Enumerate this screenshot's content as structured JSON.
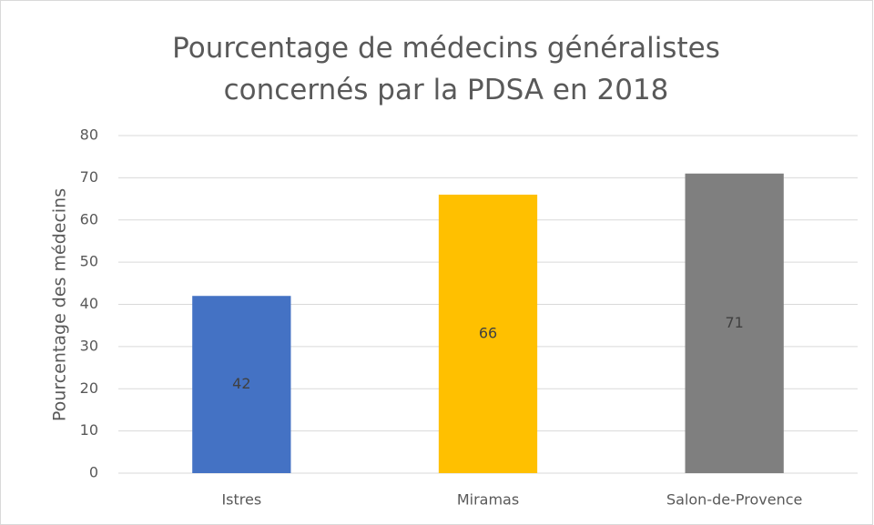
{
  "chart_data": {
    "type": "bar",
    "title": "Pourcentage de médecins généralistes concernés par la PDSA en 2018",
    "y_label": "Pourcentage des médecins",
    "categories": [
      "Istres",
      "Miramas",
      "Salon-de-Provence"
    ],
    "values": [
      42,
      66,
      71
    ],
    "colors": [
      "#4472c4",
      "#ffc000",
      "#7f7f7f"
    ],
    "ylim": [
      0,
      80
    ],
    "yticks": [
      0,
      10,
      20,
      30,
      40,
      50,
      60,
      70,
      80
    ],
    "grid": true
  }
}
